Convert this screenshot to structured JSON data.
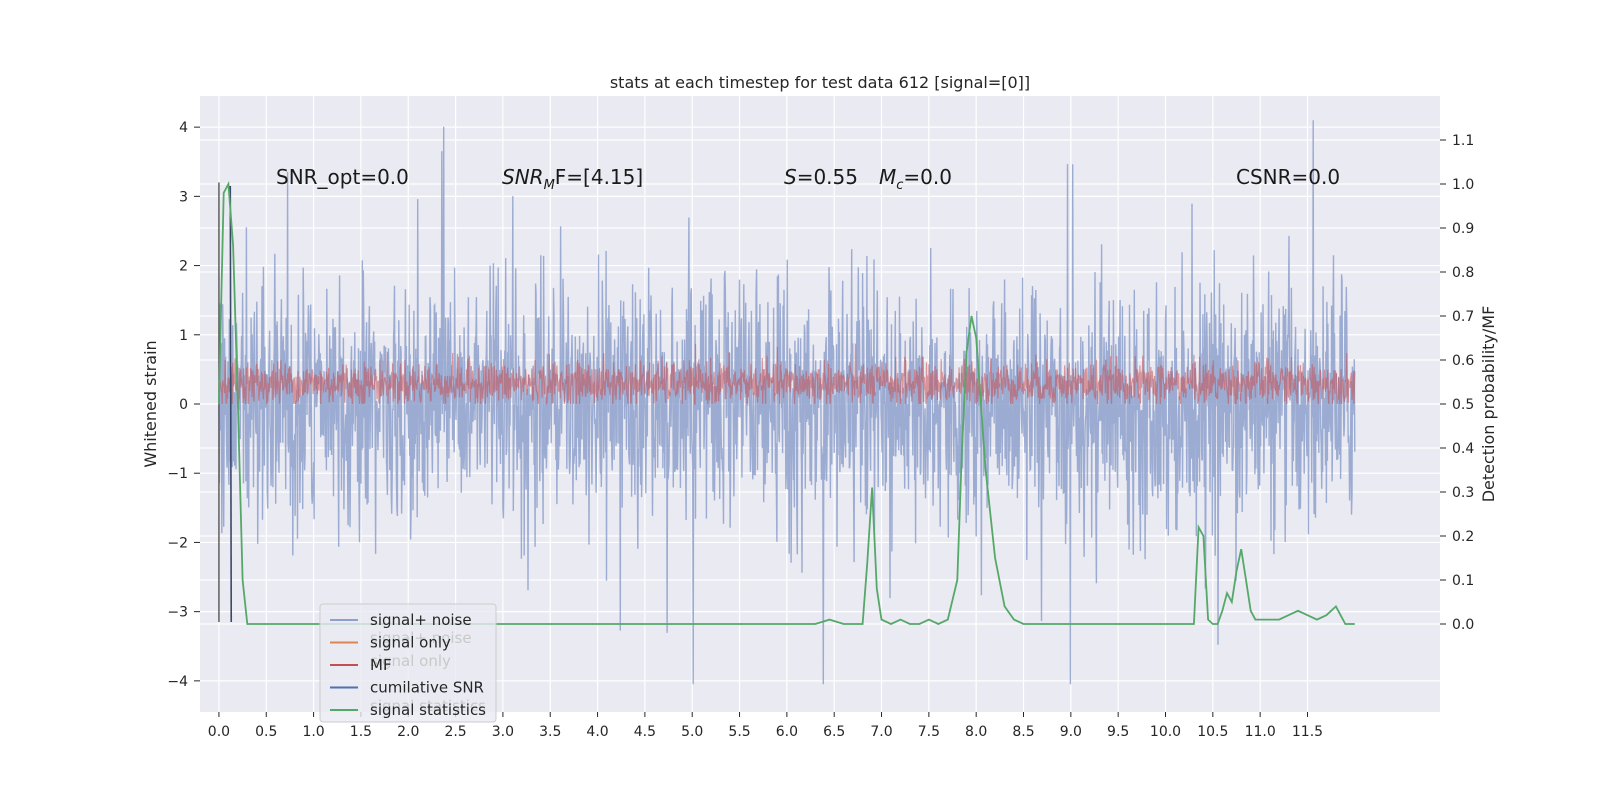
{
  "chart_data": {
    "type": "line",
    "title": "stats at each timestep for test data 612 [signal=[0]]",
    "xlabel": "",
    "ylabel": "Whitened strain",
    "ylabel_right": "Detection probability/MF",
    "xlim": [
      -0.2,
      12.9
    ],
    "ylim": [
      -4.45,
      4.45
    ],
    "ylim_right": [
      -0.2,
      1.2
    ],
    "x_ticks": [
      "0.0",
      "0.5",
      "1.0",
      "1.5",
      "2.0",
      "2.5",
      "3.0",
      "3.5",
      "4.0",
      "4.5",
      "5.0",
      "5.5",
      "6.0",
      "6.5",
      "7.0",
      "7.5",
      "8.0",
      "8.5",
      "9.0",
      "9.5",
      "10.0",
      "10.5",
      "11.0",
      "11.5"
    ],
    "x_tick_values": [
      0,
      0.5,
      1,
      1.5,
      2,
      2.5,
      3,
      3.5,
      4,
      4.5,
      5,
      5.5,
      6,
      6.5,
      7,
      7.5,
      8,
      8.5,
      9,
      9.5,
      10,
      10.5,
      11,
      11.5
    ],
    "y_ticks": [
      "−4",
      "−3",
      "−2",
      "−1",
      "0",
      "1",
      "2",
      "3",
      "4"
    ],
    "y_tick_values": [
      -4,
      -3,
      -2,
      -1,
      0,
      1,
      2,
      3,
      4
    ],
    "y_right_ticks": [
      "0.0",
      "0.1",
      "0.2",
      "0.3",
      "0.4",
      "0.5",
      "0.6",
      "0.7",
      "0.8",
      "0.9",
      "1.0",
      "1.1"
    ],
    "y_right_tick_values": [
      0,
      0.1,
      0.2,
      0.3,
      0.4,
      0.5,
      0.6,
      0.7,
      0.8,
      0.9,
      1.0,
      1.1
    ],
    "grid": true,
    "legend_placement": "lower-left",
    "legend": [
      {
        "label": "signal+ noise",
        "color": "#8da0cb"
      },
      {
        "label": "signal only",
        "color": "#dd8452"
      },
      {
        "label": "MF",
        "color": "#c44e52"
      },
      {
        "label": "cumilative SNR",
        "color": "#4c72b0"
      },
      {
        "label": "signal statistics",
        "color": "#55a868"
      }
    ],
    "legend_ghost_labels": [
      "signal+ noise",
      "signal only",
      "signal statistics"
    ],
    "annotations": {
      "snr_opt": "SNR_opt=0.0",
      "snr_mf_prefix": "SNR",
      "snr_mf_sub": "M",
      "snr_mf_suffix": "F=[4.15]",
      "s_label": "S",
      "s_value": "=0.55",
      "mc_label": "M",
      "mc_sub": "c",
      "mc_value": "=0.0",
      "csnr": "CSNR=0.0"
    },
    "series": [
      {
        "name": "signal+ noise",
        "axis": "left",
        "color": "#8da0cb",
        "x_range": [
          0,
          12
        ],
        "approx_min": -4.05,
        "approx_max": 4.1,
        "note_values": "dense noise trace, typical amplitude about ±2, sampled at high rate"
      },
      {
        "name": "MF",
        "axis": "left",
        "color": "#c44e52",
        "x_range": [
          0,
          12
        ],
        "approx_min": 0.0,
        "approx_max": 1.0
      },
      {
        "name": "signal statistics",
        "axis": "right",
        "color": "#55a868",
        "x": [
          0.0,
          0.05,
          0.1,
          0.15,
          0.2,
          0.25,
          0.3,
          0.5,
          1.0,
          2.0,
          3.0,
          4.0,
          5.0,
          6.0,
          6.3,
          6.45,
          6.6,
          6.8,
          6.85,
          6.9,
          6.95,
          7.0,
          7.1,
          7.2,
          7.3,
          7.4,
          7.5,
          7.6,
          7.7,
          7.8,
          7.85,
          7.9,
          7.95,
          8.0,
          8.05,
          8.1,
          8.2,
          8.3,
          8.4,
          8.5,
          9.0,
          9.5,
          10.0,
          10.3,
          10.35,
          10.4,
          10.45,
          10.5,
          10.55,
          10.6,
          10.65,
          10.7,
          10.75,
          10.8,
          10.85,
          10.9,
          10.95,
          11.0,
          11.05,
          11.1,
          11.15,
          11.2,
          11.3,
          11.4,
          11.5,
          11.6,
          11.7,
          11.8,
          11.85,
          11.9,
          11.95,
          12.0
        ],
        "values": [
          0.5,
          0.98,
          1.0,
          0.86,
          0.5,
          0.1,
          0.0,
          0.0,
          0.0,
          0.0,
          0.0,
          0.0,
          0.0,
          0.0,
          0.0,
          0.01,
          0.0,
          0.0,
          0.14,
          0.31,
          0.08,
          0.01,
          0.0,
          0.01,
          0.0,
          0.0,
          0.01,
          0.0,
          0.01,
          0.1,
          0.4,
          0.62,
          0.7,
          0.65,
          0.5,
          0.35,
          0.15,
          0.04,
          0.01,
          0.0,
          0.0,
          0.0,
          0.0,
          0.0,
          0.22,
          0.2,
          0.01,
          0.0,
          0.0,
          0.03,
          0.07,
          0.05,
          0.12,
          0.17,
          0.1,
          0.03,
          0.01,
          0.01,
          0.01,
          0.01,
          0.01,
          0.01,
          0.02,
          0.03,
          0.02,
          0.01,
          0.02,
          0.04,
          0.02,
          0.0,
          0.0,
          0.0
        ]
      },
      {
        "name": "cumilative SNR",
        "axis": "left",
        "color": "#4c72b0",
        "x_range": [
          0.12,
          0.13
        ],
        "approx_min": -3.15,
        "approx_max": 3.15
      }
    ]
  }
}
